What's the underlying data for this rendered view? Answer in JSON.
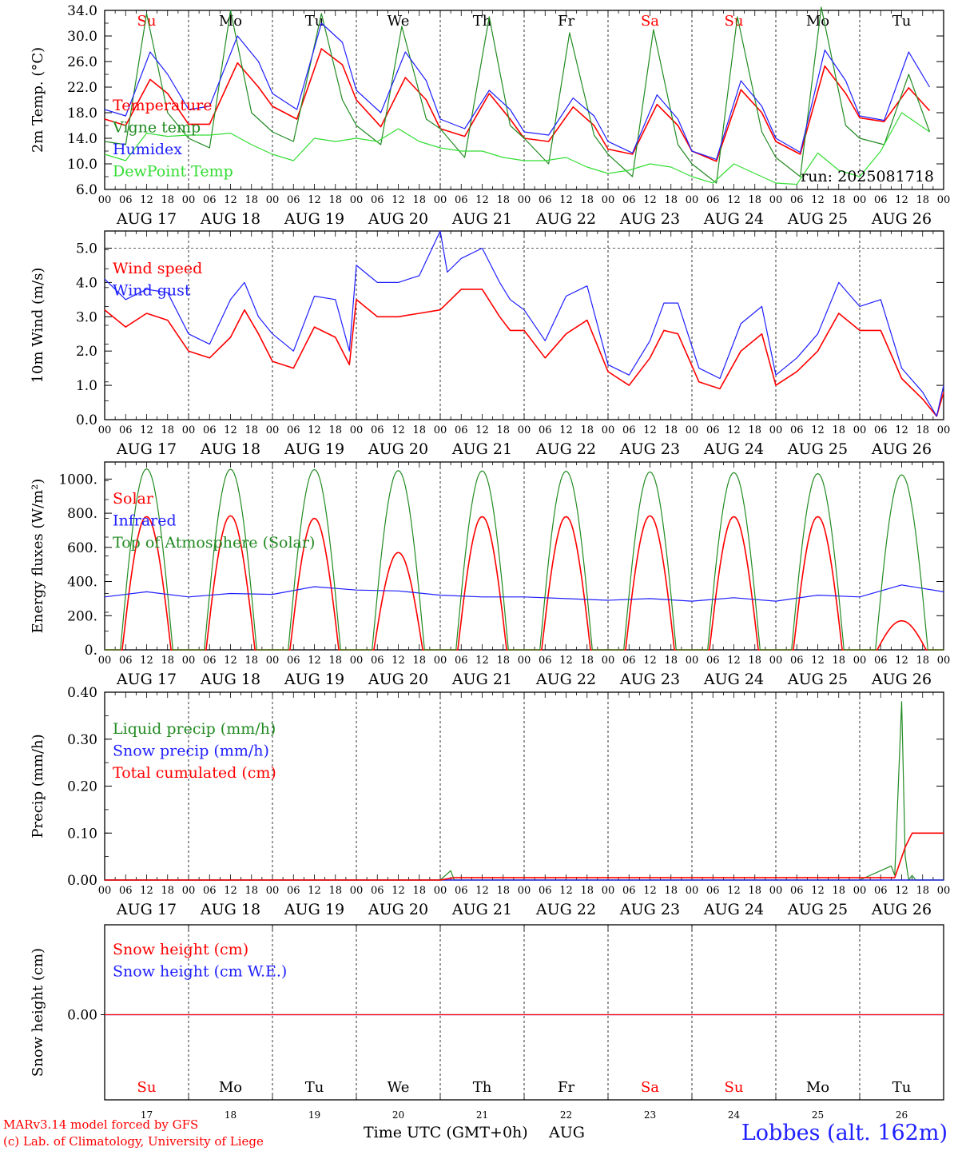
{
  "footer": {
    "credit_line1": "MARv3.14 model forced by GFS",
    "credit_line2": "(c) Lab. of Climatology, University of Liege",
    "station": "Lobbes (alt. 162m)",
    "x_axis_label": "Time UTC (GMT+0h)",
    "month_label": "AUG"
  },
  "colors": {
    "red": "#ff0000",
    "green": "#228b22",
    "lightgreen": "#33dd33",
    "blue": "#1f1fff",
    "black": "#000000"
  },
  "chart_data": [
    {
      "type": "line",
      "panel": "temperature",
      "ylabel": "2m Temp. (°C)",
      "ylim": [
        6.0,
        34.0
      ],
      "yticks": [
        "6.0",
        "10.0",
        "14.0",
        "18.0",
        "22.0",
        "26.0",
        "30.0",
        "34.0"
      ],
      "day_names": [
        "Su",
        "Mo",
        "Tu",
        "We",
        "Th",
        "Fr",
        "Sa",
        "Su",
        "Mo",
        "Tu"
      ],
      "day_name_colors": [
        "red",
        "black",
        "black",
        "black",
        "black",
        "black",
        "red",
        "red",
        "black",
        "black"
      ],
      "date_labels": [
        "AUG 17",
        "AUG 18",
        "AUG 19",
        "AUG 20",
        "AUG 21",
        "AUG 22",
        "AUG 23",
        "AUG 24",
        "AUG 25",
        "AUG 26"
      ],
      "hour_ticks": [
        "00",
        "06",
        "12",
        "18"
      ],
      "annotation": "run: 2025081718",
      "x_unit": "hours since 2025-08-17 00 UTC",
      "series": [
        {
          "name": "Temperature",
          "color": "red",
          "x": [
            0,
            6,
            13,
            18,
            24,
            30,
            38,
            44,
            48,
            55,
            62,
            68,
            72,
            79,
            86,
            92,
            96,
            103,
            110,
            116,
            120,
            127,
            134,
            140,
            144,
            151,
            158,
            164,
            168,
            175,
            182,
            188,
            192,
            199,
            206,
            212,
            216,
            223,
            230,
            236
          ],
          "values": [
            17.0,
            16.0,
            23.2,
            21.0,
            16.2,
            16.2,
            25.8,
            22.0,
            19.0,
            17.0,
            28.0,
            25.5,
            20.0,
            15.8,
            23.5,
            20.0,
            15.5,
            14.3,
            21.0,
            17.0,
            14.0,
            13.5,
            18.9,
            16.0,
            12.3,
            11.5,
            19.3,
            16.0,
            12.0,
            10.4,
            21.6,
            18.0,
            13.5,
            11.5,
            25.3,
            21.0,
            17.2,
            16.6,
            21.9,
            18.3
          ]
        },
        {
          "name": "Vigne temp",
          "color": "green",
          "x": [
            0,
            6,
            12,
            18,
            24,
            30,
            36,
            42,
            48,
            54,
            62,
            68,
            72,
            79,
            85,
            92,
            96,
            103,
            110,
            116,
            120,
            127,
            133,
            140,
            144,
            151,
            157,
            164,
            168,
            175,
            181,
            188,
            192,
            199,
            205,
            212,
            216,
            223,
            230,
            236
          ],
          "values": [
            13.5,
            13.0,
            33.5,
            18.0,
            14.0,
            12.5,
            34.0,
            18.0,
            15.0,
            13.5,
            33.5,
            20.0,
            16.0,
            13.0,
            31.5,
            17.0,
            15.5,
            11.0,
            33.0,
            16.0,
            14.0,
            10.0,
            30.5,
            14.5,
            11.5,
            8.0,
            31.0,
            13.0,
            10.0,
            7.0,
            33.0,
            15.0,
            11.0,
            8.0,
            34.5,
            16.0,
            14.0,
            13.0,
            24.0,
            15.0
          ]
        },
        {
          "name": "Humidex",
          "color": "blue",
          "x": [
            0,
            6,
            13,
            18,
            24,
            30,
            38,
            44,
            48,
            55,
            62,
            68,
            72,
            79,
            86,
            92,
            96,
            103,
            110,
            116,
            120,
            127,
            134,
            140,
            144,
            151,
            158,
            164,
            168,
            175,
            182,
            188,
            192,
            199,
            206,
            212,
            216,
            223,
            230,
            236
          ],
          "values": [
            18.5,
            17.5,
            27.5,
            24.0,
            18.5,
            19.0,
            30.0,
            26.0,
            21.0,
            18.5,
            32.0,
            29.0,
            21.5,
            18.0,
            27.5,
            23.0,
            17.0,
            15.5,
            21.5,
            18.5,
            15.0,
            14.5,
            20.3,
            17.5,
            13.5,
            11.7,
            20.8,
            17.0,
            12.0,
            10.7,
            23.0,
            19.0,
            14.0,
            11.8,
            27.8,
            23.0,
            17.5,
            16.8,
            27.5,
            22.0
          ]
        },
        {
          "name": "DewPoint Temp",
          "color": "lightgreen",
          "x": [
            0,
            6,
            12,
            18,
            24,
            30,
            36,
            42,
            48,
            54,
            60,
            66,
            72,
            78,
            84,
            90,
            96,
            102,
            108,
            114,
            120,
            126,
            132,
            138,
            144,
            150,
            156,
            162,
            168,
            174,
            180,
            186,
            192,
            198,
            204,
            210,
            216,
            222,
            228,
            236
          ],
          "values": [
            11.5,
            10.5,
            14.8,
            14.3,
            14.5,
            14.5,
            14.8,
            13.0,
            11.5,
            10.5,
            14.0,
            13.5,
            14.0,
            13.5,
            15.5,
            13.5,
            12.5,
            12.0,
            12.0,
            11.0,
            10.5,
            10.5,
            11.0,
            9.5,
            8.5,
            9.0,
            10.0,
            9.5,
            8.0,
            7.0,
            10.0,
            8.5,
            7.0,
            6.8,
            11.7,
            9.0,
            8.0,
            12.0,
            18.0,
            15.0
          ]
        }
      ]
    },
    {
      "type": "line",
      "panel": "wind",
      "ylabel": "10m Wind (m/s)",
      "ylim": [
        0.0,
        5.5
      ],
      "yticks": [
        "0.0",
        "1.0",
        "2.0",
        "3.0",
        "4.0",
        "5.0"
      ],
      "date_labels": [
        "AUG 17",
        "AUG 18",
        "AUG 19",
        "AUG 20",
        "AUG 21",
        "AUG 22",
        "AUG 23",
        "AUG 24",
        "AUG 25",
        "AUG 26"
      ],
      "hour_ticks": [
        "00",
        "06",
        "12",
        "18"
      ],
      "x_unit": "hours since 2025-08-17 00 UTC",
      "series": [
        {
          "name": "Wind speed",
          "color": "red",
          "x": [
            0,
            6,
            12,
            18,
            24,
            30,
            36,
            40,
            44,
            48,
            54,
            60,
            66,
            70,
            72,
            78,
            84,
            90,
            96,
            102,
            108,
            113,
            116,
            120,
            126,
            132,
            138,
            144,
            150,
            156,
            160,
            164,
            170,
            176,
            182,
            188,
            192,
            198,
            204,
            210,
            216,
            222,
            228,
            234,
            238,
            240
          ],
          "values": [
            3.2,
            2.7,
            3.1,
            2.9,
            2.0,
            1.8,
            2.4,
            3.2,
            2.5,
            1.7,
            1.5,
            2.7,
            2.4,
            1.6,
            3.5,
            3.0,
            3.0,
            3.1,
            3.2,
            3.8,
            3.8,
            3.0,
            2.6,
            2.6,
            1.8,
            2.5,
            2.9,
            1.4,
            1.0,
            1.8,
            2.6,
            2.5,
            1.1,
            0.9,
            2.0,
            2.5,
            1.0,
            1.4,
            2.0,
            3.1,
            2.6,
            2.6,
            1.2,
            0.6,
            0.1,
            0.8
          ]
        },
        {
          "name": "Wind gust",
          "color": "blue",
          "x": [
            0,
            6,
            12,
            18,
            24,
            30,
            36,
            40,
            44,
            48,
            54,
            60,
            66,
            70,
            72,
            78,
            84,
            90,
            96,
            98,
            102,
            108,
            113,
            116,
            120,
            126,
            132,
            138,
            144,
            150,
            156,
            160,
            164,
            170,
            176,
            182,
            188,
            192,
            198,
            204,
            210,
            216,
            222,
            228,
            234,
            238,
            240
          ],
          "values": [
            4.1,
            3.5,
            3.8,
            3.7,
            2.5,
            2.2,
            3.5,
            4.0,
            3.0,
            2.5,
            2.0,
            3.6,
            3.5,
            2.0,
            4.5,
            4.0,
            4.0,
            4.2,
            5.5,
            4.3,
            4.7,
            5.0,
            4.0,
            3.5,
            3.2,
            2.3,
            3.6,
            3.9,
            1.6,
            1.3,
            2.3,
            3.4,
            3.4,
            1.5,
            1.2,
            2.8,
            3.3,
            1.3,
            1.8,
            2.5,
            4.0,
            3.3,
            3.5,
            1.5,
            0.8,
            0.1,
            1.0
          ]
        }
      ]
    },
    {
      "type": "line",
      "panel": "energy",
      "ylabel": "Energy fluxes (W/m²)",
      "ylim": [
        0,
        1100
      ],
      "yticks": [
        "0.",
        "200.",
        "400.",
        "600.",
        "800.",
        "1000."
      ],
      "date_labels": [
        "AUG 17",
        "AUG 18",
        "AUG 19",
        "AUG 20",
        "AUG 21",
        "AUG 22",
        "AUG 23",
        "AUG 24",
        "AUG 25",
        "AUG 26"
      ],
      "hour_ticks": [
        "00",
        "06",
        "12",
        "18"
      ],
      "x_unit": "hours since 2025-08-17 00 UTC",
      "series": [
        {
          "name": "Solar",
          "color": "red",
          "daily_peak": [
            780,
            785,
            770,
            570,
            780,
            780,
            785,
            780,
            780,
            170
          ],
          "daily_hours": [
            5,
            19
          ]
        },
        {
          "name": "Infrared",
          "color": "blue",
          "x": [
            0,
            12,
            24,
            36,
            48,
            60,
            72,
            84,
            96,
            108,
            120,
            132,
            144,
            156,
            168,
            180,
            192,
            204,
            216,
            228,
            240
          ],
          "values": [
            310,
            340,
            310,
            330,
            325,
            370,
            350,
            345,
            320,
            310,
            310,
            300,
            290,
            300,
            285,
            305,
            285,
            320,
            310,
            380,
            340
          ]
        },
        {
          "name": "Top of Atmosphere (Solar)",
          "color": "green",
          "daily_peak": [
            1060,
            1058,
            1056,
            1050,
            1048,
            1046,
            1042,
            1038,
            1032,
            1025
          ],
          "daily_hours": [
            4.5,
            19.5
          ]
        }
      ]
    },
    {
      "type": "line",
      "panel": "precip",
      "ylabel": "Precip (mm/h)",
      "ylim": [
        0.0,
        0.4
      ],
      "yticks": [
        "0.00",
        "0.10",
        "0.20",
        "0.30",
        "0.40"
      ],
      "date_labels": [
        "AUG 17",
        "AUG 18",
        "AUG 19",
        "AUG 20",
        "AUG 21",
        "AUG 22",
        "AUG 23",
        "AUG 24",
        "AUG 25",
        "AUG 26"
      ],
      "hour_ticks": [
        "00",
        "06",
        "12",
        "18"
      ],
      "x_unit": "hours since 2025-08-17 00 UTC",
      "series": [
        {
          "name": "Liquid precip (mm/h)",
          "color": "green",
          "x": [
            0,
            96,
            99,
            100,
            108,
            216,
            225,
            226,
            228,
            229,
            230,
            231,
            232,
            240
          ],
          "values": [
            0,
            0,
            0.02,
            0,
            0,
            0,
            0.03,
            0.01,
            0.38,
            0.05,
            0,
            0.01,
            0,
            0
          ]
        },
        {
          "name": "Snow precip (mm/h)",
          "color": "blue",
          "x": [
            0,
            240
          ],
          "values": [
            0,
            0
          ]
        },
        {
          "name": "Total cumulated (cm)",
          "color": "red",
          "x": [
            0,
            96,
            100,
            226,
            229,
            231,
            240
          ],
          "values": [
            0,
            0,
            0.005,
            0.005,
            0.07,
            0.1,
            0.1
          ]
        }
      ]
    },
    {
      "type": "line",
      "panel": "snow",
      "ylabel": "Snow height (cm)",
      "yticks": [
        "0.00"
      ],
      "day_names": [
        "Su",
        "Mo",
        "Tu",
        "We",
        "Th",
        "Fr",
        "Sa",
        "Su",
        "Mo",
        "Tu"
      ],
      "day_name_colors": [
        "red",
        "black",
        "black",
        "black",
        "black",
        "black",
        "red",
        "red",
        "black",
        "black"
      ],
      "day_numbers": [
        "17",
        "18",
        "19",
        "20",
        "21",
        "22",
        "23",
        "24",
        "25",
        "26"
      ],
      "series": [
        {
          "name": "Snow height (cm)",
          "color": "red",
          "x": [
            0,
            240
          ],
          "values": [
            0,
            0
          ]
        },
        {
          "name": "Snow height (cm W.E.)",
          "color": "blue",
          "x": [
            0,
            240
          ],
          "values": [
            0,
            0
          ]
        }
      ]
    }
  ]
}
